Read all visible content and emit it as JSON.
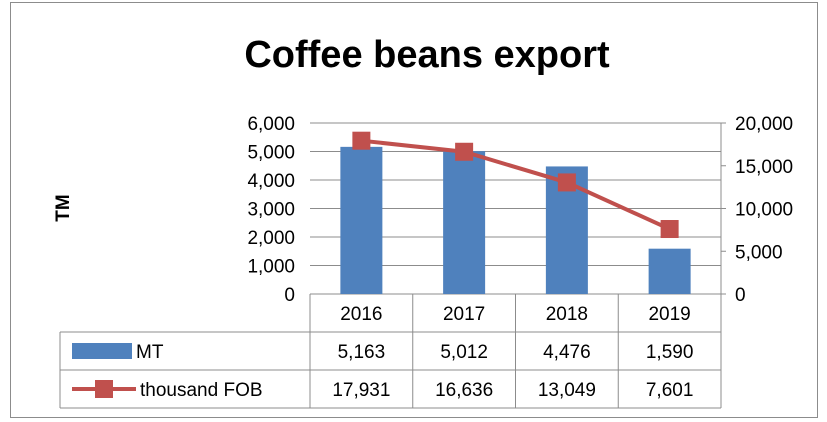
{
  "chart_data": {
    "type": "bar",
    "title": "Coffee beans export",
    "ylabel": "TM",
    "categories": [
      "2016",
      "2017",
      "2018",
      "2019"
    ],
    "series": [
      {
        "name": "MT",
        "type": "bar",
        "axis": "left",
        "color": "#4f81bd",
        "values": [
          5163,
          5012,
          4476,
          1590
        ],
        "labels": [
          "5,163",
          "5,012",
          "4,476",
          "1,590"
        ]
      },
      {
        "name": "thousand FOB",
        "type": "line",
        "axis": "right",
        "color": "#c0504d",
        "values": [
          17931,
          16636,
          13049,
          7601
        ],
        "labels": [
          "17,931",
          "16,636",
          "13,049",
          "7,601"
        ]
      }
    ],
    "ylim_left": [
      0,
      6000
    ],
    "yticks_left": [
      "0",
      "1,000",
      "2,000",
      "3,000",
      "4,000",
      "5,000",
      "6,000"
    ],
    "ylim_right": [
      0,
      20000
    ],
    "yticks_right": [
      "0",
      "5,000",
      "10,000",
      "15,000",
      "20,000"
    ],
    "grid": true,
    "data_table": true
  }
}
